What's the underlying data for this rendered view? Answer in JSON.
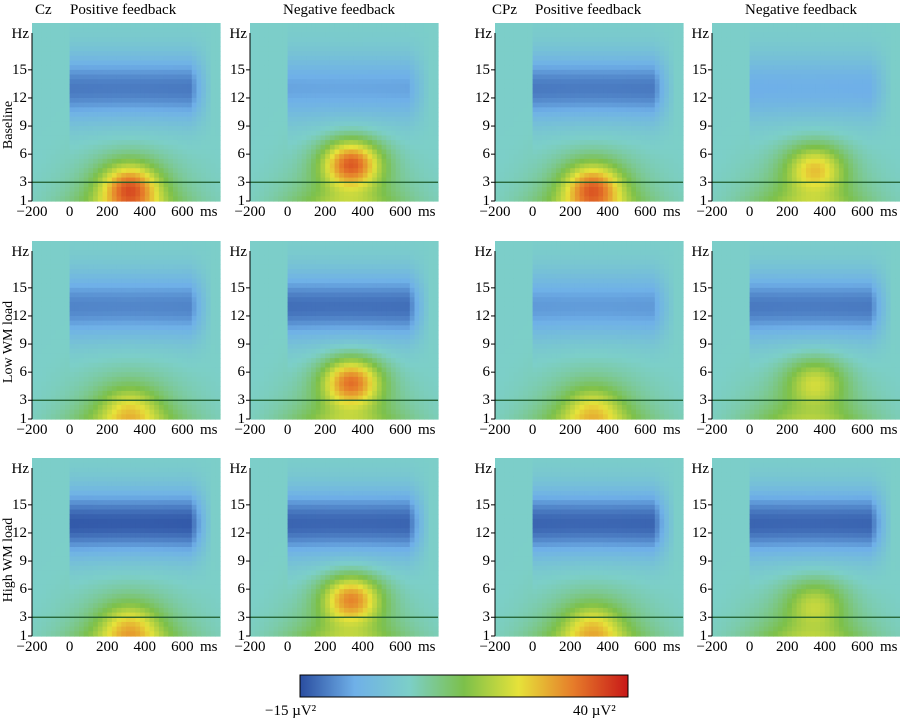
{
  "chart_data": {
    "type": "heatmap",
    "title": "",
    "electrodes": [
      "Cz",
      "CPz"
    ],
    "conditions": [
      "Positive feedback",
      "Negative feedback"
    ],
    "rows": [
      "Baseline",
      "Low WM load",
      "High WM load"
    ],
    "xlabel": "ms",
    "ylabel": "Hz",
    "x_ticks": [
      "-200",
      "0",
      "200",
      "400",
      "600"
    ],
    "x_unit": "ms",
    "x_range": [
      -200,
      800
    ],
    "y_ticks": [
      "1",
      "3",
      "6",
      "9",
      "12",
      "15"
    ],
    "y_unit": "Hz",
    "y_range": [
      1,
      20
    ],
    "marker_line_hz": 3,
    "colorbar": {
      "min": -15,
      "max": 40,
      "min_label": "−15 µV²",
      "max_label": "40 µV²",
      "colors": [
        "#2a4da0",
        "#6fb0e8",
        "#7ccfc8",
        "#7cc04a",
        "#e6e23a",
        "#e67c2a",
        "#c81818"
      ]
    },
    "panels": [
      {
        "row": "Baseline",
        "electrode": "Cz",
        "condition": "Positive feedback",
        "alpha_power": -11,
        "theta_peak_power": 36,
        "theta_peak_ms": 320,
        "theta_peak_hz": 2.5
      },
      {
        "row": "Baseline",
        "electrode": "Cz",
        "condition": "Negative feedback",
        "alpha_power": -7,
        "theta_peak_power": 40,
        "theta_peak_ms": 340,
        "theta_peak_hz": 5
      },
      {
        "row": "Baseline",
        "electrode": "CPz",
        "condition": "Positive feedback",
        "alpha_power": -11,
        "theta_peak_power": 35,
        "theta_peak_ms": 320,
        "theta_peak_hz": 2.5
      },
      {
        "row": "Baseline",
        "electrode": "CPz",
        "condition": "Negative feedback",
        "alpha_power": -6,
        "theta_peak_power": 30,
        "theta_peak_ms": 350,
        "theta_peak_hz": 4.5
      },
      {
        "row": "Low WM load",
        "electrode": "Cz",
        "condition": "Positive feedback",
        "alpha_power": -10,
        "theta_peak_power": 24,
        "theta_peak_ms": 320,
        "theta_peak_hz": 2
      },
      {
        "row": "Low WM load",
        "electrode": "Cz",
        "condition": "Negative feedback",
        "alpha_power": -12,
        "theta_peak_power": 38,
        "theta_peak_ms": 340,
        "theta_peak_hz": 5
      },
      {
        "row": "Low WM load",
        "electrode": "CPz",
        "condition": "Positive feedback",
        "alpha_power": -8,
        "theta_peak_power": 24,
        "theta_peak_ms": 320,
        "theta_peak_hz": 2
      },
      {
        "row": "Low WM load",
        "electrode": "CPz",
        "condition": "Negative feedback",
        "alpha_power": -11,
        "theta_peak_power": 26,
        "theta_peak_ms": 350,
        "theta_peak_hz": 5
      },
      {
        "row": "High WM load",
        "electrode": "Cz",
        "condition": "Positive feedback",
        "alpha_power": -14,
        "theta_peak_power": 26,
        "theta_peak_ms": 320,
        "theta_peak_hz": 2
      },
      {
        "row": "High WM load",
        "electrode": "Cz",
        "condition": "Negative feedback",
        "alpha_power": -13,
        "theta_peak_power": 36,
        "theta_peak_ms": 340,
        "theta_peak_hz": 5
      },
      {
        "row": "High WM load",
        "electrode": "CPz",
        "condition": "Positive feedback",
        "alpha_power": -13,
        "theta_peak_power": 25,
        "theta_peak_ms": 320,
        "theta_peak_hz": 2
      },
      {
        "row": "High WM load",
        "electrode": "CPz",
        "condition": "Negative feedback",
        "alpha_power": -13,
        "theta_peak_power": 24,
        "theta_peak_ms": 350,
        "theta_peak_hz": 4.5
      }
    ]
  }
}
